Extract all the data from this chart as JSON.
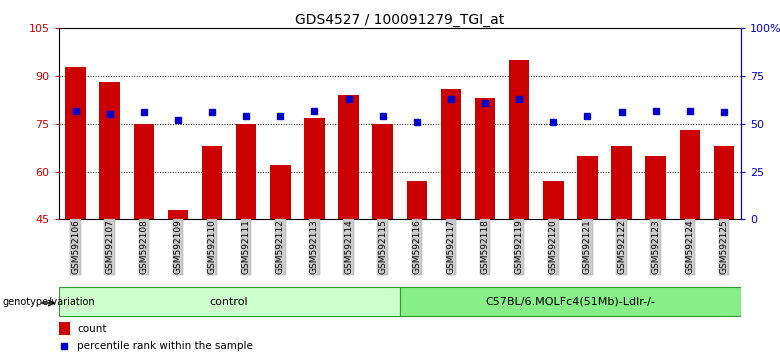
{
  "title": "GDS4527 / 100091279_TGI_at",
  "samples": [
    "GSM592106",
    "GSM592107",
    "GSM592108",
    "GSM592109",
    "GSM592110",
    "GSM592111",
    "GSM592112",
    "GSM592113",
    "GSM592114",
    "GSM592115",
    "GSM592116",
    "GSM592117",
    "GSM592118",
    "GSM592119",
    "GSM592120",
    "GSM592121",
    "GSM592122",
    "GSM592123",
    "GSM592124",
    "GSM592125"
  ],
  "counts": [
    93,
    88,
    75,
    48,
    68,
    75,
    62,
    77,
    84,
    75,
    57,
    86,
    83,
    95,
    57,
    65,
    68,
    65,
    73,
    68
  ],
  "percentile_right": [
    57,
    55,
    56,
    52,
    56,
    54,
    54,
    57,
    63,
    54,
    51,
    63,
    61,
    63,
    51,
    54,
    56,
    57,
    57,
    56
  ],
  "bar_color": "#cc0000",
  "square_color": "#0000cc",
  "ylim_left": [
    45,
    105
  ],
  "ylim_right": [
    0,
    100
  ],
  "yticks_left": [
    45,
    60,
    75,
    90,
    105
  ],
  "yticks_right": [
    0,
    25,
    50,
    75,
    100
  ],
  "ytick_labels_right": [
    "0",
    "25",
    "50",
    "75",
    "100%"
  ],
  "control_group": "control",
  "control_count": 10,
  "treatment_group": "C57BL/6.MOLFc4(51Mb)-Ldlr-/-",
  "genotype_label": "genotype/variation",
  "legend_count_label": "count",
  "legend_percentile_label": "percentile rank within the sample",
  "group_bg_control": "#ccffcc",
  "group_bg_treatment": "#88ee88",
  "xticklabel_bg": "#cccccc",
  "bar_width": 0.6,
  "title_fontsize": 10,
  "tick_fontsize": 8,
  "square_size": 5
}
